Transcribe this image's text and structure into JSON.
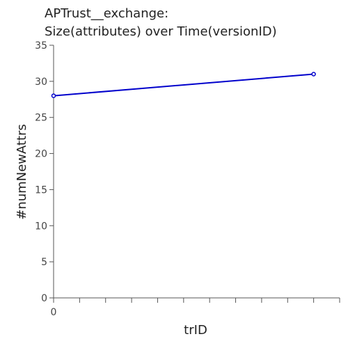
{
  "chart_data": {
    "type": "line",
    "title_lines": [
      "APTrust__exchange:",
      "Size(attributes) over Time(versionID)"
    ],
    "xlabel": "trID",
    "ylabel": "#numNewAttrs",
    "x": [
      0,
      10
    ],
    "series": [
      {
        "values": [
          28,
          31
        ]
      }
    ],
    "xlim": [
      0,
      11
    ],
    "ylim": [
      0,
      35
    ],
    "y_ticks": [
      "0",
      "5",
      "10",
      "15",
      "20",
      "25",
      "30",
      "35"
    ],
    "x_tick_labels": [
      "0"
    ],
    "x_minor_tick_count": 11,
    "grid": false,
    "line_color": "#0000cc",
    "axis_color": "#555555"
  }
}
